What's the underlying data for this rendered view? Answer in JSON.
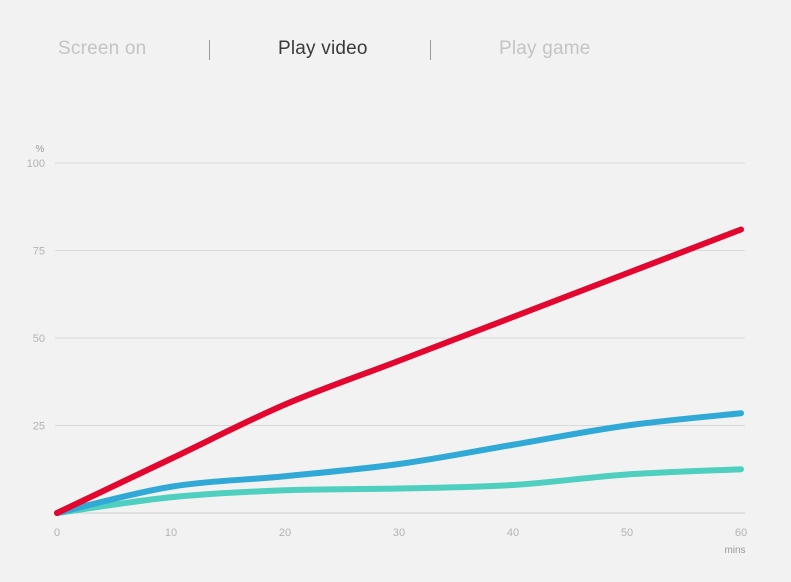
{
  "tabs": [
    {
      "label": "Screen on",
      "active": false
    },
    {
      "label": "Play video",
      "active": true
    },
    {
      "label": "Play game",
      "active": false
    }
  ],
  "chart_data": {
    "type": "line",
    "y_unit": "%",
    "x_unit": "mins",
    "xlim": [
      0,
      60
    ],
    "ylim": [
      0,
      100
    ],
    "x_ticks": [
      0,
      10,
      20,
      30,
      40,
      50,
      60
    ],
    "y_ticks": [
      100,
      75,
      50,
      25
    ],
    "grid": true,
    "series": [
      {
        "color": "#e3062f",
        "x": [
          0,
          10,
          20,
          30,
          40,
          50,
          60
        ],
        "y": [
          0,
          15.5,
          31,
          43.5,
          56,
          68.5,
          81
        ]
      },
      {
        "color": "#31a9d6",
        "x": [
          0,
          10,
          20,
          30,
          40,
          50,
          60
        ],
        "y": [
          0,
          7.5,
          10.5,
          14,
          19.5,
          25,
          28.5
        ]
      },
      {
        "color": "#4ecfbf",
        "x": [
          0,
          10,
          20,
          30,
          40,
          50,
          60
        ],
        "y": [
          0,
          4.5,
          6.5,
          7,
          8,
          11,
          12.5
        ]
      }
    ]
  }
}
